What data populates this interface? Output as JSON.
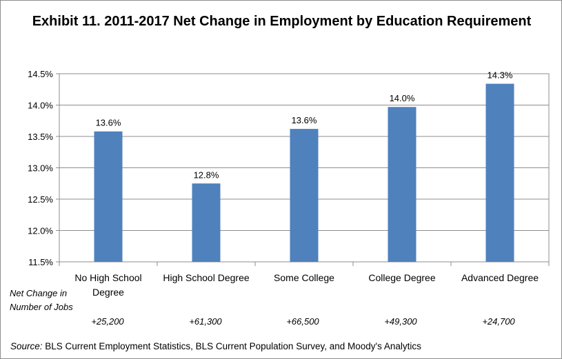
{
  "chart_data": {
    "type": "bar",
    "title": "Exhibit 11. 2011-2017 Net Change in Employment by Education Requirement",
    "categories": [
      "No High School Degree",
      "High School Degree",
      "Some College",
      "College Degree",
      "Advanced Degree"
    ],
    "category_lines": [
      [
        "No High School",
        "Degree"
      ],
      [
        "High School Degree"
      ],
      [
        "Some College"
      ],
      [
        "College Degree"
      ],
      [
        "Advanced Degree"
      ]
    ],
    "values": [
      13.58,
      12.75,
      13.62,
      13.97,
      14.34
    ],
    "data_labels": [
      "13.6%",
      "12.8%",
      "13.6%",
      "14.0%",
      "14.3%"
    ],
    "yticks": [
      "11.5%",
      "12.0%",
      "12.5%",
      "13.0%",
      "13.5%",
      "14.0%",
      "14.5%"
    ],
    "ylim": [
      11.5,
      14.5
    ],
    "bar_color": "#4f81bd",
    "grid": true
  },
  "net_change": {
    "label": "Net Change in Number of Jobs",
    "values": [
      "+25,200",
      "+61,300",
      "+66,500",
      "+49,300",
      "+24,700"
    ]
  },
  "source": {
    "prefix": "Source:",
    "text": " BLS Current Employment Statistics, BLS Current Population Survey, and Moody's Analytics"
  }
}
